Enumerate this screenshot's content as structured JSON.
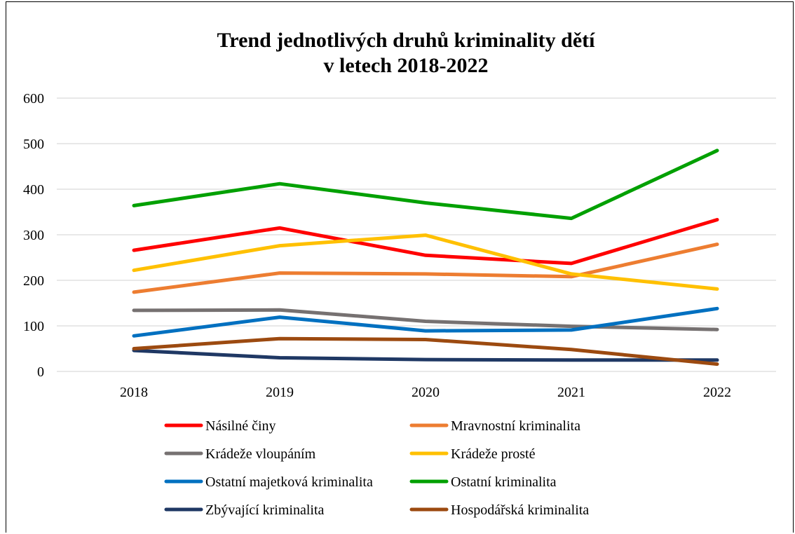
{
  "chart_data": {
    "type": "line",
    "title": "Trend jednotlivých druhů kriminality dětí",
    "subtitle": "v letech 2018-2022",
    "xlabel": "",
    "ylabel": "",
    "ylim": [
      0,
      600
    ],
    "yticks": [
      0,
      100,
      200,
      300,
      400,
      500,
      600
    ],
    "grid": true,
    "legend_position": "bottom",
    "categories": [
      "2018",
      "2019",
      "2020",
      "2021",
      "2022"
    ],
    "series": [
      {
        "name": "Násilné činy",
        "color": "#ff0000",
        "values": [
          266,
          315,
          255,
          237,
          333
        ]
      },
      {
        "name": "Mravnostní kriminalita",
        "color": "#ed7d31",
        "values": [
          174,
          216,
          214,
          208,
          279
        ]
      },
      {
        "name": "Krádeže vloupáním",
        "color": "#767171",
        "values": [
          134,
          135,
          110,
          99,
          92
        ]
      },
      {
        "name": "Krádeže prosté",
        "color": "#ffc000",
        "values": [
          222,
          276,
          299,
          214,
          181
        ]
      },
      {
        "name": "Ostatní majetková kriminalita",
        "color": "#0070c0",
        "values": [
          78,
          119,
          89,
          91,
          138
        ]
      },
      {
        "name": "Ostatní kriminalita",
        "color": "#00a000",
        "values": [
          364,
          412,
          370,
          336,
          485
        ]
      },
      {
        "name": "Zbývající kriminalita",
        "color": "#1f3864",
        "values": [
          46,
          30,
          26,
          25,
          25
        ]
      },
      {
        "name": "Hospodářská kriminalita",
        "color": "#9c4a10",
        "values": [
          50,
          72,
          70,
          48,
          16
        ]
      }
    ]
  }
}
